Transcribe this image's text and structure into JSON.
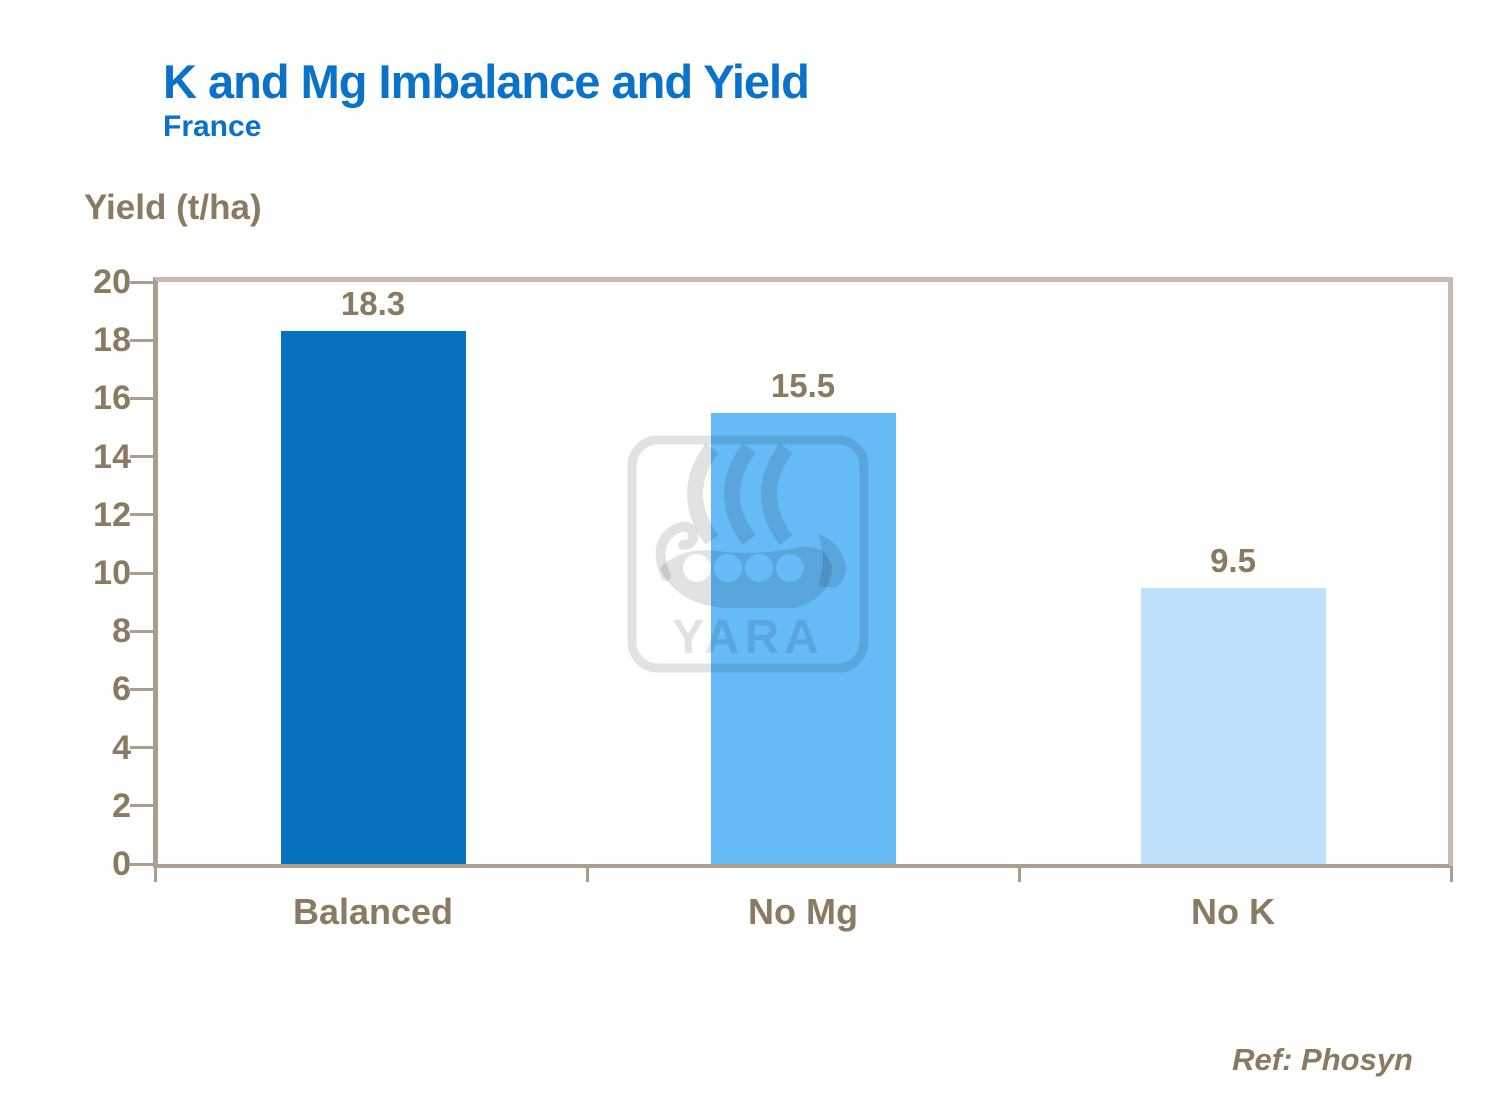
{
  "header": {
    "title": "K and Mg Imbalance and Yield",
    "subtitle": "France"
  },
  "footer": {
    "ref": "Ref: Phosyn"
  },
  "watermark": {
    "name": "yara-viking-ship-logo",
    "text": "YARA"
  },
  "colors": {
    "title_blue": "#0a72c8",
    "text_brown": "#8b7a62",
    "axis_taupe": "#ab9e8e",
    "border_light_taupe": "#c6bbae",
    "background": "#ffffff"
  },
  "chart_data": {
    "type": "bar",
    "title": "K and Mg Imbalance and Yield",
    "subtitle": "France",
    "axis_title": "Yield (t/ha)",
    "xlabel": "",
    "ylabel": "Yield (t/ha)",
    "categories": [
      "Balanced",
      "No Mg",
      "No K"
    ],
    "values": [
      18.3,
      15.5,
      9.5
    ],
    "value_labels": [
      "18.3",
      "15.5",
      "9.5"
    ],
    "bar_colors": [
      "#0672c0",
      "#66bbf7",
      "#bde0fb"
    ],
    "ylim": [
      0,
      20
    ],
    "yticks": [
      0,
      2,
      4,
      6,
      8,
      10,
      12,
      14,
      16,
      18,
      20
    ],
    "grid": false,
    "legend_position": "none",
    "annotation": "Ref: Phosyn"
  }
}
